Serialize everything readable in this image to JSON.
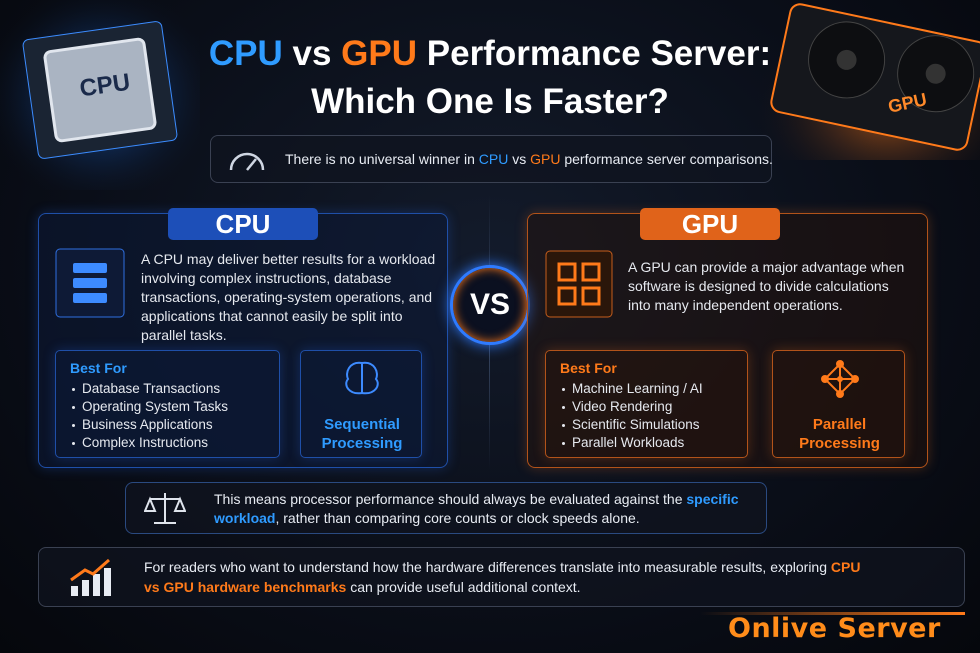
{
  "title": {
    "line1": [
      "CPU",
      " vs ",
      "GPU",
      " Performance Server:"
    ],
    "line2": "Which One Is Faster?"
  },
  "hero": {
    "cpu_chip": "CPU",
    "gpu_card": "GPU"
  },
  "intro": [
    "There is no universal winner in ",
    "CPU",
    " vs ",
    "GPU",
    " performance server comparisons."
  ],
  "cpu": {
    "heading": "CPU",
    "description": "A CPU may deliver better results for a workload involving complex instructions, database transactions, operating-system operations, and applications that cannot easily be split into parallel tasks.",
    "best_for_title": "Best For",
    "best_for": [
      "Database Transactions",
      "Operating System Tasks",
      "Business Applications",
      "Complex Instructions"
    ],
    "mode": [
      "Sequential",
      "Processing"
    ]
  },
  "vs": "VS",
  "gpu": {
    "heading": "GPU",
    "description": "A GPU can provide a major advantage when software is designed to divide calculations into many independent operations.",
    "best_for_title": "Best For",
    "best_for": [
      "Machine Learning / AI",
      "Video Rendering",
      "Scientific Simulations",
      "Parallel Workloads"
    ],
    "mode": [
      "Parallel",
      "Processing"
    ]
  },
  "note": [
    "This means processor performance should always be evaluated against the ",
    "specific workload",
    ", rather than comparing core counts or clock speeds alone."
  ],
  "footer": [
    "For readers who want to understand how the hardware differences translate into measurable results, exploring ",
    "CPU vs GPU hardware benchmarks",
    " can provide useful additional context."
  ],
  "brand": "Onlive Server"
}
